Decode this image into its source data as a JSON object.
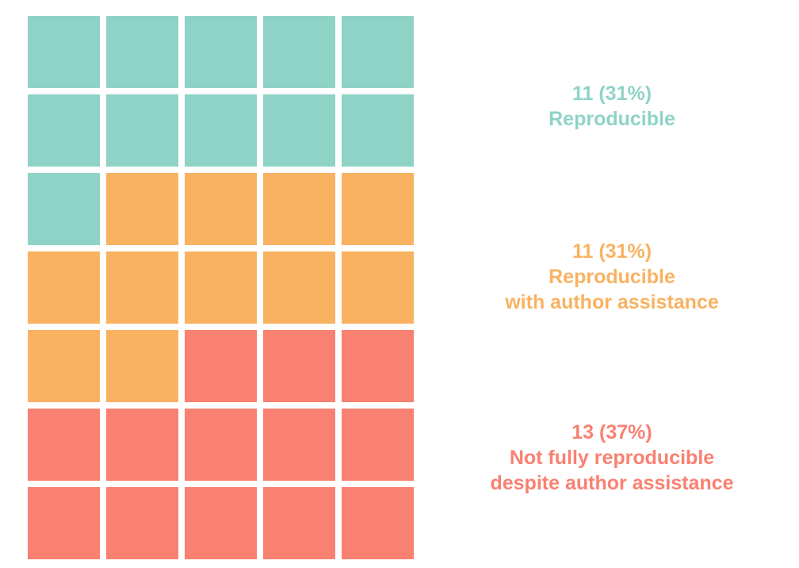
{
  "chart_data": {
    "type": "waffle",
    "grid": {
      "rows": 7,
      "cols": 5
    },
    "fill_order": "row-major from top-left",
    "total": 35,
    "categories": [
      {
        "count": 11,
        "count_label": "11 (31%)",
        "label_lines": [
          "Reproducible"
        ],
        "color": "#8fd3c7"
      },
      {
        "count": 11,
        "count_label": "11 (31%)",
        "label_lines": [
          "Reproducible",
          "with author assistance"
        ],
        "color": "#f9b262"
      },
      {
        "count": 13,
        "count_label": "13 (37%)",
        "label_lines": [
          "Not fully reproducible",
          "despite author assistance"
        ],
        "color": "#f98172"
      }
    ]
  }
}
